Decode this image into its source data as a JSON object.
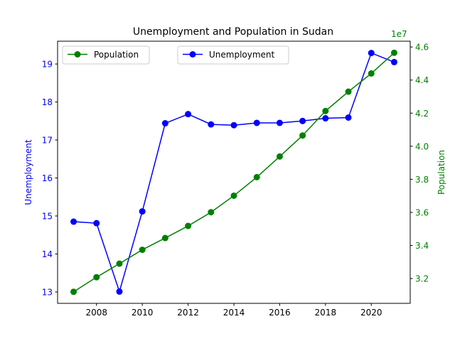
{
  "chart_data": {
    "type": "line",
    "title": "Unemployment and Population in Sudan",
    "x": [
      2007,
      2008,
      2009,
      2010,
      2011,
      2012,
      2013,
      2014,
      2015,
      2016,
      2017,
      2018,
      2019,
      2020,
      2021
    ],
    "xlim": [
      2006.3,
      2021.7
    ],
    "xticks": [
      2008,
      2010,
      2012,
      2014,
      2016,
      2018,
      2020
    ],
    "series": [
      {
        "name": "Unemployment",
        "axis": "left",
        "color": "#0000ff",
        "values": [
          14.85,
          14.81,
          13.01,
          15.12,
          17.44,
          17.68,
          17.41,
          17.39,
          17.45,
          17.45,
          17.5,
          17.57,
          17.59,
          19.29,
          19.05
        ]
      },
      {
        "name": "Population",
        "axis": "right",
        "color": "#008000",
        "values": [
          31200000,
          32080000,
          32900000,
          33740000,
          34450000,
          35180000,
          36010000,
          37010000,
          38130000,
          39380000,
          40650000,
          42130000,
          43300000,
          44400000,
          45650000
        ]
      }
    ],
    "y_left": {
      "label": "Unemployment",
      "ylim": [
        12.7,
        19.6
      ],
      "ticks": [
        13,
        14,
        15,
        16,
        17,
        18,
        19
      ],
      "color": "#0000ff"
    },
    "y_right": {
      "label": "Population",
      "ylim": [
        30500000,
        46350000
      ],
      "ticks": [
        32000000,
        34000000,
        36000000,
        38000000,
        40000000,
        42000000,
        44000000,
        46000000
      ],
      "tick_labels": [
        "3.2",
        "3.4",
        "3.6",
        "3.8",
        "4.0",
        "4.2",
        "4.4",
        "4.6"
      ],
      "offset_label": "1e7",
      "color": "#008000"
    },
    "legends": [
      {
        "entries": [
          "Population"
        ],
        "placement": "upper-left"
      },
      {
        "entries": [
          "Unemployment"
        ],
        "placement": "upper-center"
      }
    ],
    "grid": false
  }
}
